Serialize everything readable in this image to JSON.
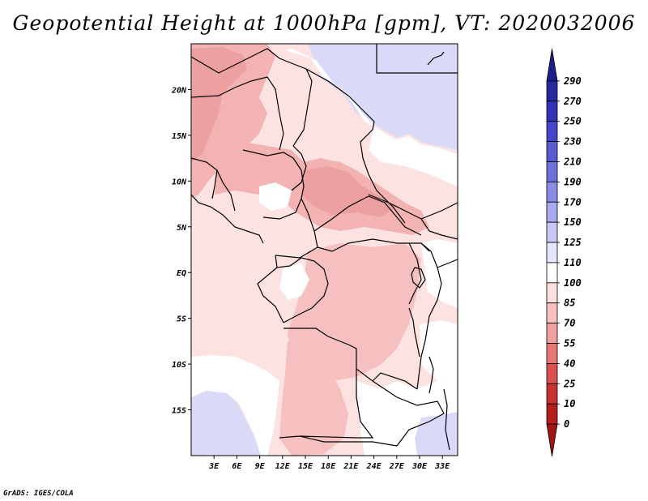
{
  "title": "Geopotential Height at 1000hPa [gpm], VT: 2020032006",
  "credit": "GrADS: IGES/COLA",
  "map": {
    "lon_range": [
      0,
      35
    ],
    "lat_range": [
      -20,
      25
    ],
    "x_ticks": [
      "3E",
      "6E",
      "9E",
      "12E",
      "15E",
      "18E",
      "21E",
      "24E",
      "27E",
      "30E",
      "33E"
    ],
    "x_tick_values": [
      3,
      6,
      9,
      12,
      15,
      18,
      21,
      24,
      27,
      30,
      33
    ],
    "y_ticks": [
      "20N",
      "15N",
      "10N",
      "5N",
      "EQ",
      "5S",
      "10S",
      "15S"
    ],
    "y_tick_values": [
      20,
      15,
      10,
      5,
      0,
      -5,
      -10,
      -15
    ]
  },
  "colorbar": {
    "labels": [
      "290",
      "270",
      "250",
      "230",
      "210",
      "190",
      "170",
      "150",
      "125",
      "110",
      "100",
      "85",
      "70",
      "55",
      "40",
      "25",
      "10",
      "0"
    ],
    "colors": [
      "#1e1e8c",
      "#2828a0",
      "#3232b4",
      "#4646c8",
      "#5a5ad2",
      "#7070dc",
      "#8c8ce6",
      "#aaaaf0",
      "#c8c8f8",
      "#e6e6ff",
      "#ffffff",
      "#fde0e0",
      "#f8c0c0",
      "#f0a0a0",
      "#e67878",
      "#dc5050",
      "#c83232",
      "#b41e1e",
      "#a01414"
    ]
  },
  "colors": {
    "bg": "#ffffff",
    "low": "#fde0e0",
    "mid": "#f8c0c0",
    "high": "#f0a0a0",
    "blue": "#dcdcfa"
  }
}
